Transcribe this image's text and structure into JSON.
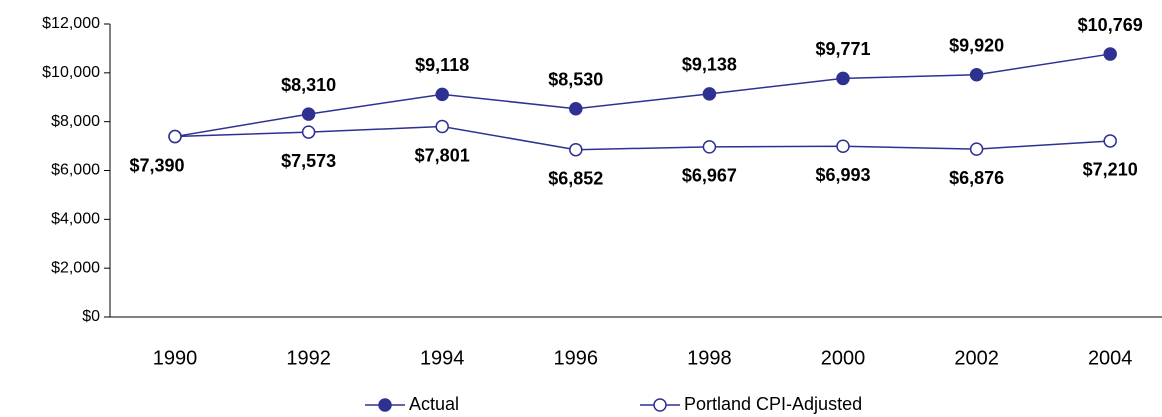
{
  "chart_data": {
    "type": "line",
    "categories": [
      "1990",
      "1992",
      "1994",
      "1996",
      "1998",
      "2000",
      "2002",
      "2004"
    ],
    "series": [
      {
        "name": "Actual",
        "color": "#2e3192",
        "marker": "filled",
        "values": [
          7390,
          8310,
          9118,
          8530,
          9138,
          9771,
          9920,
          10769
        ],
        "value_labels": [
          "$7,390",
          "$8,310",
          "$9,118",
          "$8,530",
          "$9,138",
          "$9,771",
          "$9,920",
          "$10,769"
        ]
      },
      {
        "name": "Portland CPI-Adjusted",
        "color": "#2e3192",
        "marker": "open",
        "values": [
          7390,
          7573,
          7801,
          6852,
          6967,
          6993,
          6876,
          7210
        ],
        "value_labels": [
          null,
          "$7,573",
          "$7,801",
          "$6,852",
          "$6,967",
          "$6,993",
          "$6,876",
          "$7,210"
        ]
      }
    ],
    "ylim": [
      0,
      12000
    ],
    "yticks": [
      {
        "value": 0,
        "label": "$0"
      },
      {
        "value": 2000,
        "label": "$2,000"
      },
      {
        "value": 4000,
        "label": "$4,000"
      },
      {
        "value": 6000,
        "label": "$6,000"
      },
      {
        "value": 8000,
        "label": "$8,000"
      },
      {
        "value": 10000,
        "label": "$10,000"
      },
      {
        "value": 12000,
        "label": "$12,000"
      }
    ],
    "legend": "bottom"
  }
}
